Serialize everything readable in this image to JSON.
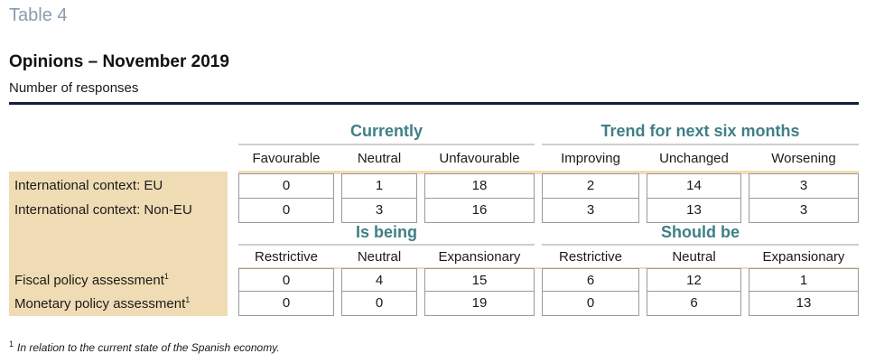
{
  "table_label": "Table 4",
  "title": "Opinions – November 2019",
  "subtitle": "Number of responses",
  "section1": {
    "group_left": "Currently",
    "group_right": "Trend for next six months",
    "columns": [
      "Favourable",
      "Neutral",
      "Unfavourable",
      "Improving",
      "Unchanged",
      "Worsening"
    ],
    "rows": [
      {
        "label": "International context: EU",
        "values": [
          "0",
          "1",
          "18",
          "2",
          "14",
          "3"
        ]
      },
      {
        "label": "International context: Non-EU",
        "values": [
          "0",
          "3",
          "16",
          "3",
          "13",
          "3"
        ]
      }
    ]
  },
  "section2": {
    "group_left": "Is being",
    "group_right": "Should be",
    "columns": [
      "Restrictive",
      "Neutral",
      "Expansionary",
      "Restrictive",
      "Neutral",
      "Expansionary"
    ],
    "rows": [
      {
        "label": "Fiscal policy assessment",
        "note": "1",
        "values": [
          "0",
          "4",
          "15",
          "6",
          "12",
          "1"
        ]
      },
      {
        "label": "Monetary policy assessment",
        "note": "1",
        "values": [
          "0",
          "0",
          "19",
          "0",
          "6",
          "13"
        ]
      }
    ]
  },
  "footnote": {
    "mark": "1",
    "text": "In relation to the current state of the Spanish economy."
  },
  "colors": {
    "tan": "#f0dcb4",
    "heading_teal": "#3f7f86",
    "rule": "#14203a"
  }
}
